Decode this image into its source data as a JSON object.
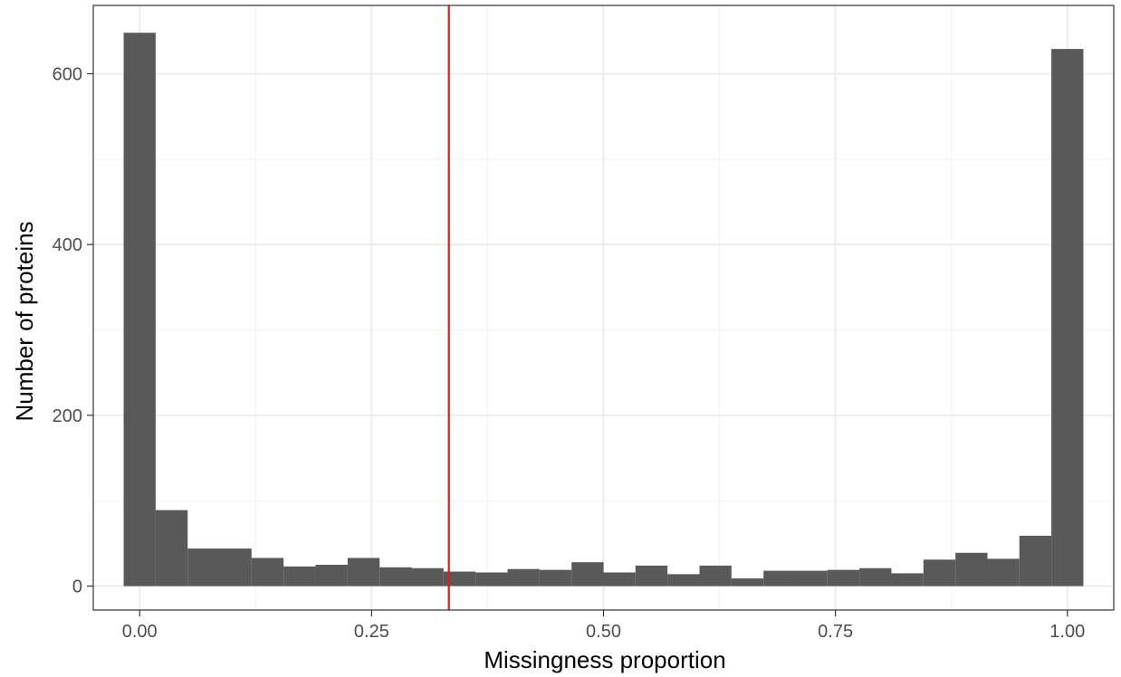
{
  "chart_data": {
    "type": "bar",
    "subtype": "histogram",
    "title": "",
    "xlabel": "Missingness proportion",
    "ylabel": "Number of proteins",
    "xlim": [
      -0.05,
      1.05
    ],
    "ylim": [
      -28,
      680
    ],
    "x_ticks": [
      {
        "value": 0.0,
        "label": "0.00"
      },
      {
        "value": 0.25,
        "label": "0.25"
      },
      {
        "value": 0.5,
        "label": "0.50"
      },
      {
        "value": 0.75,
        "label": "0.75"
      },
      {
        "value": 1.0,
        "label": "1.00"
      }
    ],
    "y_ticks": [
      {
        "value": 0,
        "label": "0"
      },
      {
        "value": 200,
        "label": "200"
      },
      {
        "value": 400,
        "label": "400"
      },
      {
        "value": 600,
        "label": "600"
      }
    ],
    "bin_width": 0.0345,
    "bin_centers": [
      0.0,
      0.0345,
      0.069,
      0.1034,
      0.1379,
      0.1724,
      0.2069,
      0.2414,
      0.2759,
      0.3103,
      0.3448,
      0.3793,
      0.4138,
      0.4483,
      0.4828,
      0.5172,
      0.5517,
      0.5862,
      0.6207,
      0.6552,
      0.6897,
      0.7241,
      0.7586,
      0.7931,
      0.8276,
      0.8621,
      0.8966,
      0.931,
      0.9655,
      1.0
    ],
    "values": [
      648,
      89,
      44,
      44,
      33,
      23,
      25,
      33,
      22,
      21,
      17,
      16,
      20,
      19,
      28,
      16,
      24,
      14,
      24,
      9,
      18,
      18,
      19,
      21,
      15,
      31,
      39,
      32,
      59,
      629
    ],
    "reference_line": {
      "x": 0.3333,
      "color": "#e31a1c"
    },
    "bar_color": "#595959",
    "grid": true,
    "legend": "none"
  }
}
